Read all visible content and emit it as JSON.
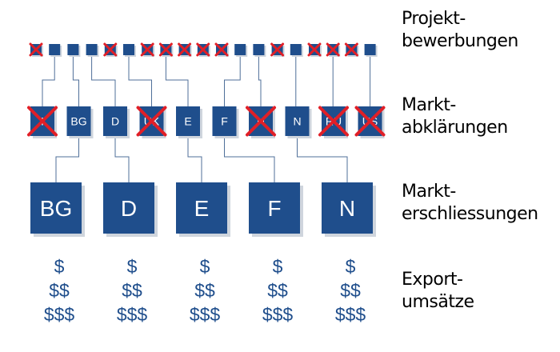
{
  "colors": {
    "box_fill": "#1f4e8c",
    "box_text": "#ffffff",
    "cross": "#e11f27",
    "connector": "#4f6f99",
    "shadow": "#cfd5dd",
    "label_text": "#000000",
    "dollar_text": "#1f4e8c"
  },
  "row_labels": [
    {
      "line1": "Projekt-",
      "line2": "bewerbungen"
    },
    {
      "line1": "Markt-",
      "line2": "abklärungen"
    },
    {
      "line1": "Markt-",
      "line2": "erschliessungen"
    },
    {
      "line1": "Export-",
      "line2": "umsätze"
    }
  ],
  "projects": {
    "count": 19,
    "crossed": [
      0,
      4,
      6,
      7,
      8,
      9,
      10,
      13,
      15,
      16,
      17
    ]
  },
  "clarifications": [
    {
      "label": "I",
      "crossed": true
    },
    {
      "label": "BG",
      "crossed": false
    },
    {
      "label": "D",
      "crossed": false
    },
    {
      "label": "UK",
      "crossed": true
    },
    {
      "label": "E",
      "crossed": false
    },
    {
      "label": "F",
      "crossed": false
    },
    {
      "label": "H",
      "crossed": true
    },
    {
      "label": "N",
      "crossed": false
    },
    {
      "label": "RU",
      "crossed": true
    },
    {
      "label": "US",
      "crossed": true
    }
  ],
  "markets": [
    "BG",
    "D",
    "E",
    "F",
    "N"
  ],
  "revenue_levels": [
    "$",
    "$$",
    "$$$"
  ]
}
